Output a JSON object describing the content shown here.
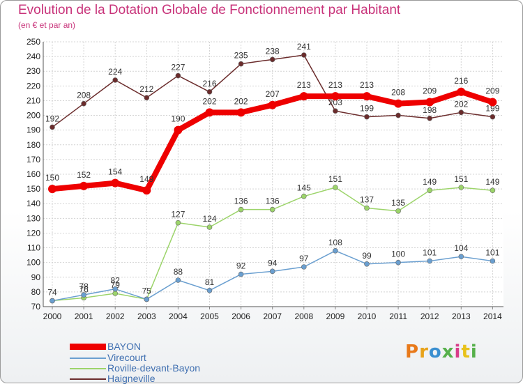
{
  "header": {
    "title": "Evolution de la Dotation Globale de Fonctionnement par Habitant",
    "subtitle": "(en € et par an)"
  },
  "chart_data": {
    "type": "line",
    "title": "Evolution de la Dotation Globale de Fonctionnement par Habitant",
    "ylabel": "(en € et par an)",
    "x": [
      "2000",
      "2001",
      "2002",
      "2003",
      "2004",
      "2005",
      "2006",
      "2007",
      "2008",
      "2009",
      "2010",
      "2011",
      "2012",
      "2013",
      "2014"
    ],
    "ylim": [
      70,
      250
    ],
    "yticks": [
      "70",
      "80",
      "90",
      "100",
      "110",
      "120",
      "130",
      "140",
      "150",
      "160",
      "170",
      "180",
      "190",
      "200",
      "210",
      "220",
      "230",
      "240",
      "250"
    ],
    "grid": true,
    "legend_position": "bottom-left",
    "series": [
      {
        "name": "Haigneville",
        "color": "#6b2c2c",
        "values": [
          192,
          208,
          224,
          212,
          227,
          216,
          235,
          238,
          241,
          203,
          199,
          200,
          198,
          202,
          199
        ],
        "labels": [
          "192",
          "208",
          "224",
          "212",
          "227",
          "216",
          "235",
          "238",
          "241",
          "203",
          "199",
          "",
          "198",
          "202",
          "199"
        ]
      },
      {
        "name": "Roville-devant-Bayon",
        "color": "#9cd46a",
        "values": [
          74,
          76,
          79,
          75,
          127,
          124,
          136,
          136,
          145,
          151,
          137,
          135,
          149,
          151,
          149
        ],
        "labels": [
          "",
          "76",
          "79",
          "",
          "127",
          "124",
          "136",
          "136",
          "145",
          "151",
          "137",
          "135",
          "149",
          "151",
          "149"
        ]
      },
      {
        "name": "Virecourt",
        "color": "#6a9fd0",
        "values": [
          74,
          78,
          82,
          75,
          88,
          81,
          92,
          94,
          97,
          108,
          99,
          100,
          101,
          104,
          101
        ],
        "labels": [
          "74",
          "78",
          "82",
          "75",
          "88",
          "81",
          "92",
          "94",
          "97",
          "108",
          "99",
          "100",
          "101",
          "104",
          "101"
        ]
      },
      {
        "name": "BAYON",
        "color": "#ee0000",
        "values": [
          150,
          152,
          154,
          149,
          190,
          202,
          202,
          207,
          213,
          213,
          213,
          208,
          209,
          216,
          209
        ],
        "labels": [
          "150",
          "152",
          "154",
          "149",
          "190",
          "202",
          "202",
          "207",
          "213",
          "213",
          "213",
          "208",
          "209",
          "216",
          "209"
        ]
      }
    ]
  },
  "legend": {
    "items": [
      {
        "label": "BAYON",
        "color": "#ee0000"
      },
      {
        "label": "Virecourt",
        "color": "#6a9fd0"
      },
      {
        "label": "Roville-devant-Bayon",
        "color": "#9cd46a"
      },
      {
        "label": "Haigneville",
        "color": "#6b2c2c"
      }
    ]
  },
  "logo": {
    "letters": [
      "P",
      "r",
      "o",
      "x",
      "i",
      "t",
      "i"
    ],
    "colors": [
      "#e8791a",
      "#e8a21a",
      "#3a8fd0",
      "#56b04b",
      "#d83c8a",
      "#e8c21a",
      "#56b04b"
    ]
  }
}
